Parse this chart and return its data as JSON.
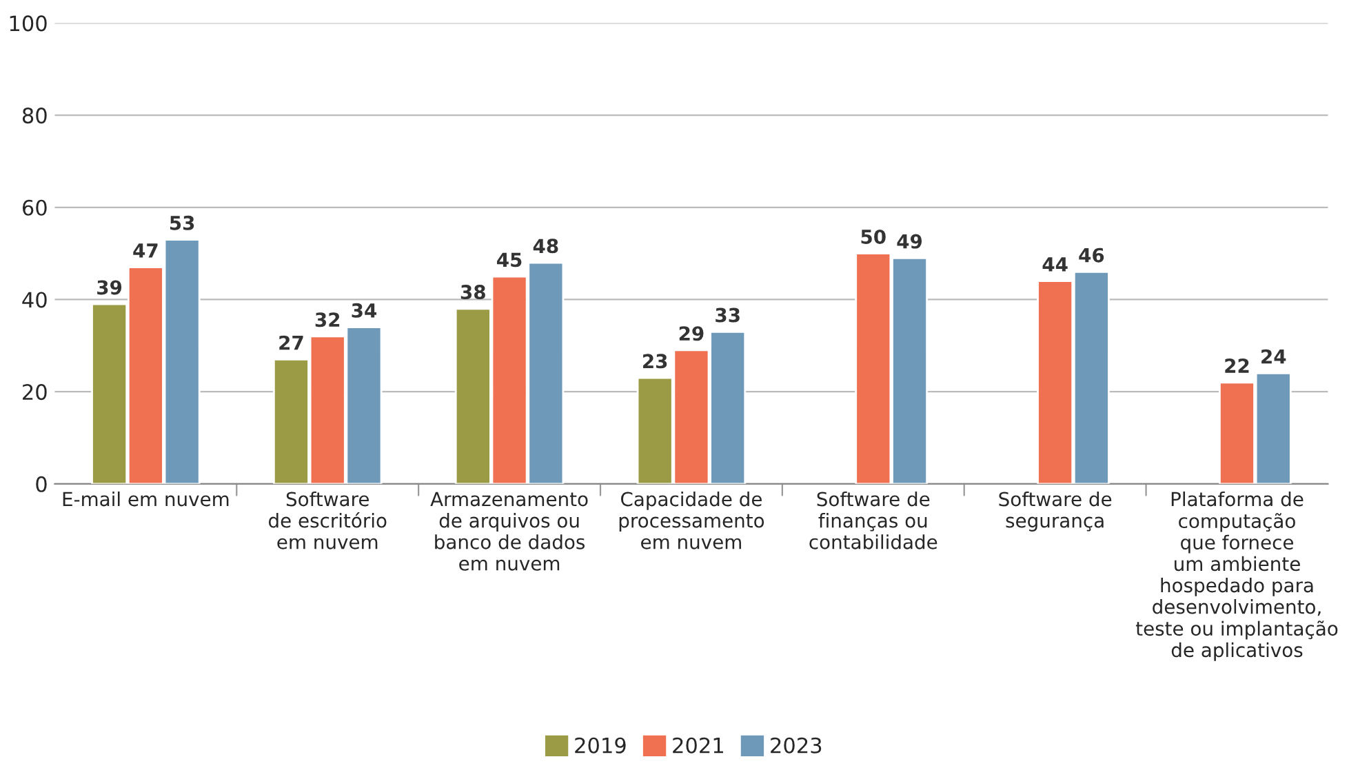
{
  "chart_data": {
    "type": "bar",
    "categories": [
      "E-mail em nuvem",
      "Software\nde escritório\nem nuvem",
      "Armazenamento\nde arquivos ou\nbanco de dados\nem nuvem",
      "Capacidade de\nprocessamento\nem nuvem",
      "Software de\nfinanças ou\ncontabilidade",
      "Software de\nsegurança",
      "Plataforma de\ncomputação\nque fornece\num ambiente\nhospedado para\ndesenvolvimento,\nteste ou implantação\nde aplicativos"
    ],
    "series": [
      {
        "name": "2019",
        "color": "#9b9a45",
        "values": [
          39,
          27,
          38,
          23,
          null,
          null,
          null
        ]
      },
      {
        "name": "2021",
        "color": "#f07152",
        "values": [
          47,
          32,
          45,
          29,
          50,
          44,
          22
        ]
      },
      {
        "name": "2023",
        "color": "#6e99b8",
        "values": [
          53,
          34,
          48,
          33,
          49,
          46,
          24
        ]
      }
    ],
    "ylim": [
      0,
      100
    ],
    "yticks": [
      0,
      20,
      40,
      60,
      80,
      100
    ],
    "grid": "y",
    "legend": "bottom",
    "data_labels": true
  }
}
